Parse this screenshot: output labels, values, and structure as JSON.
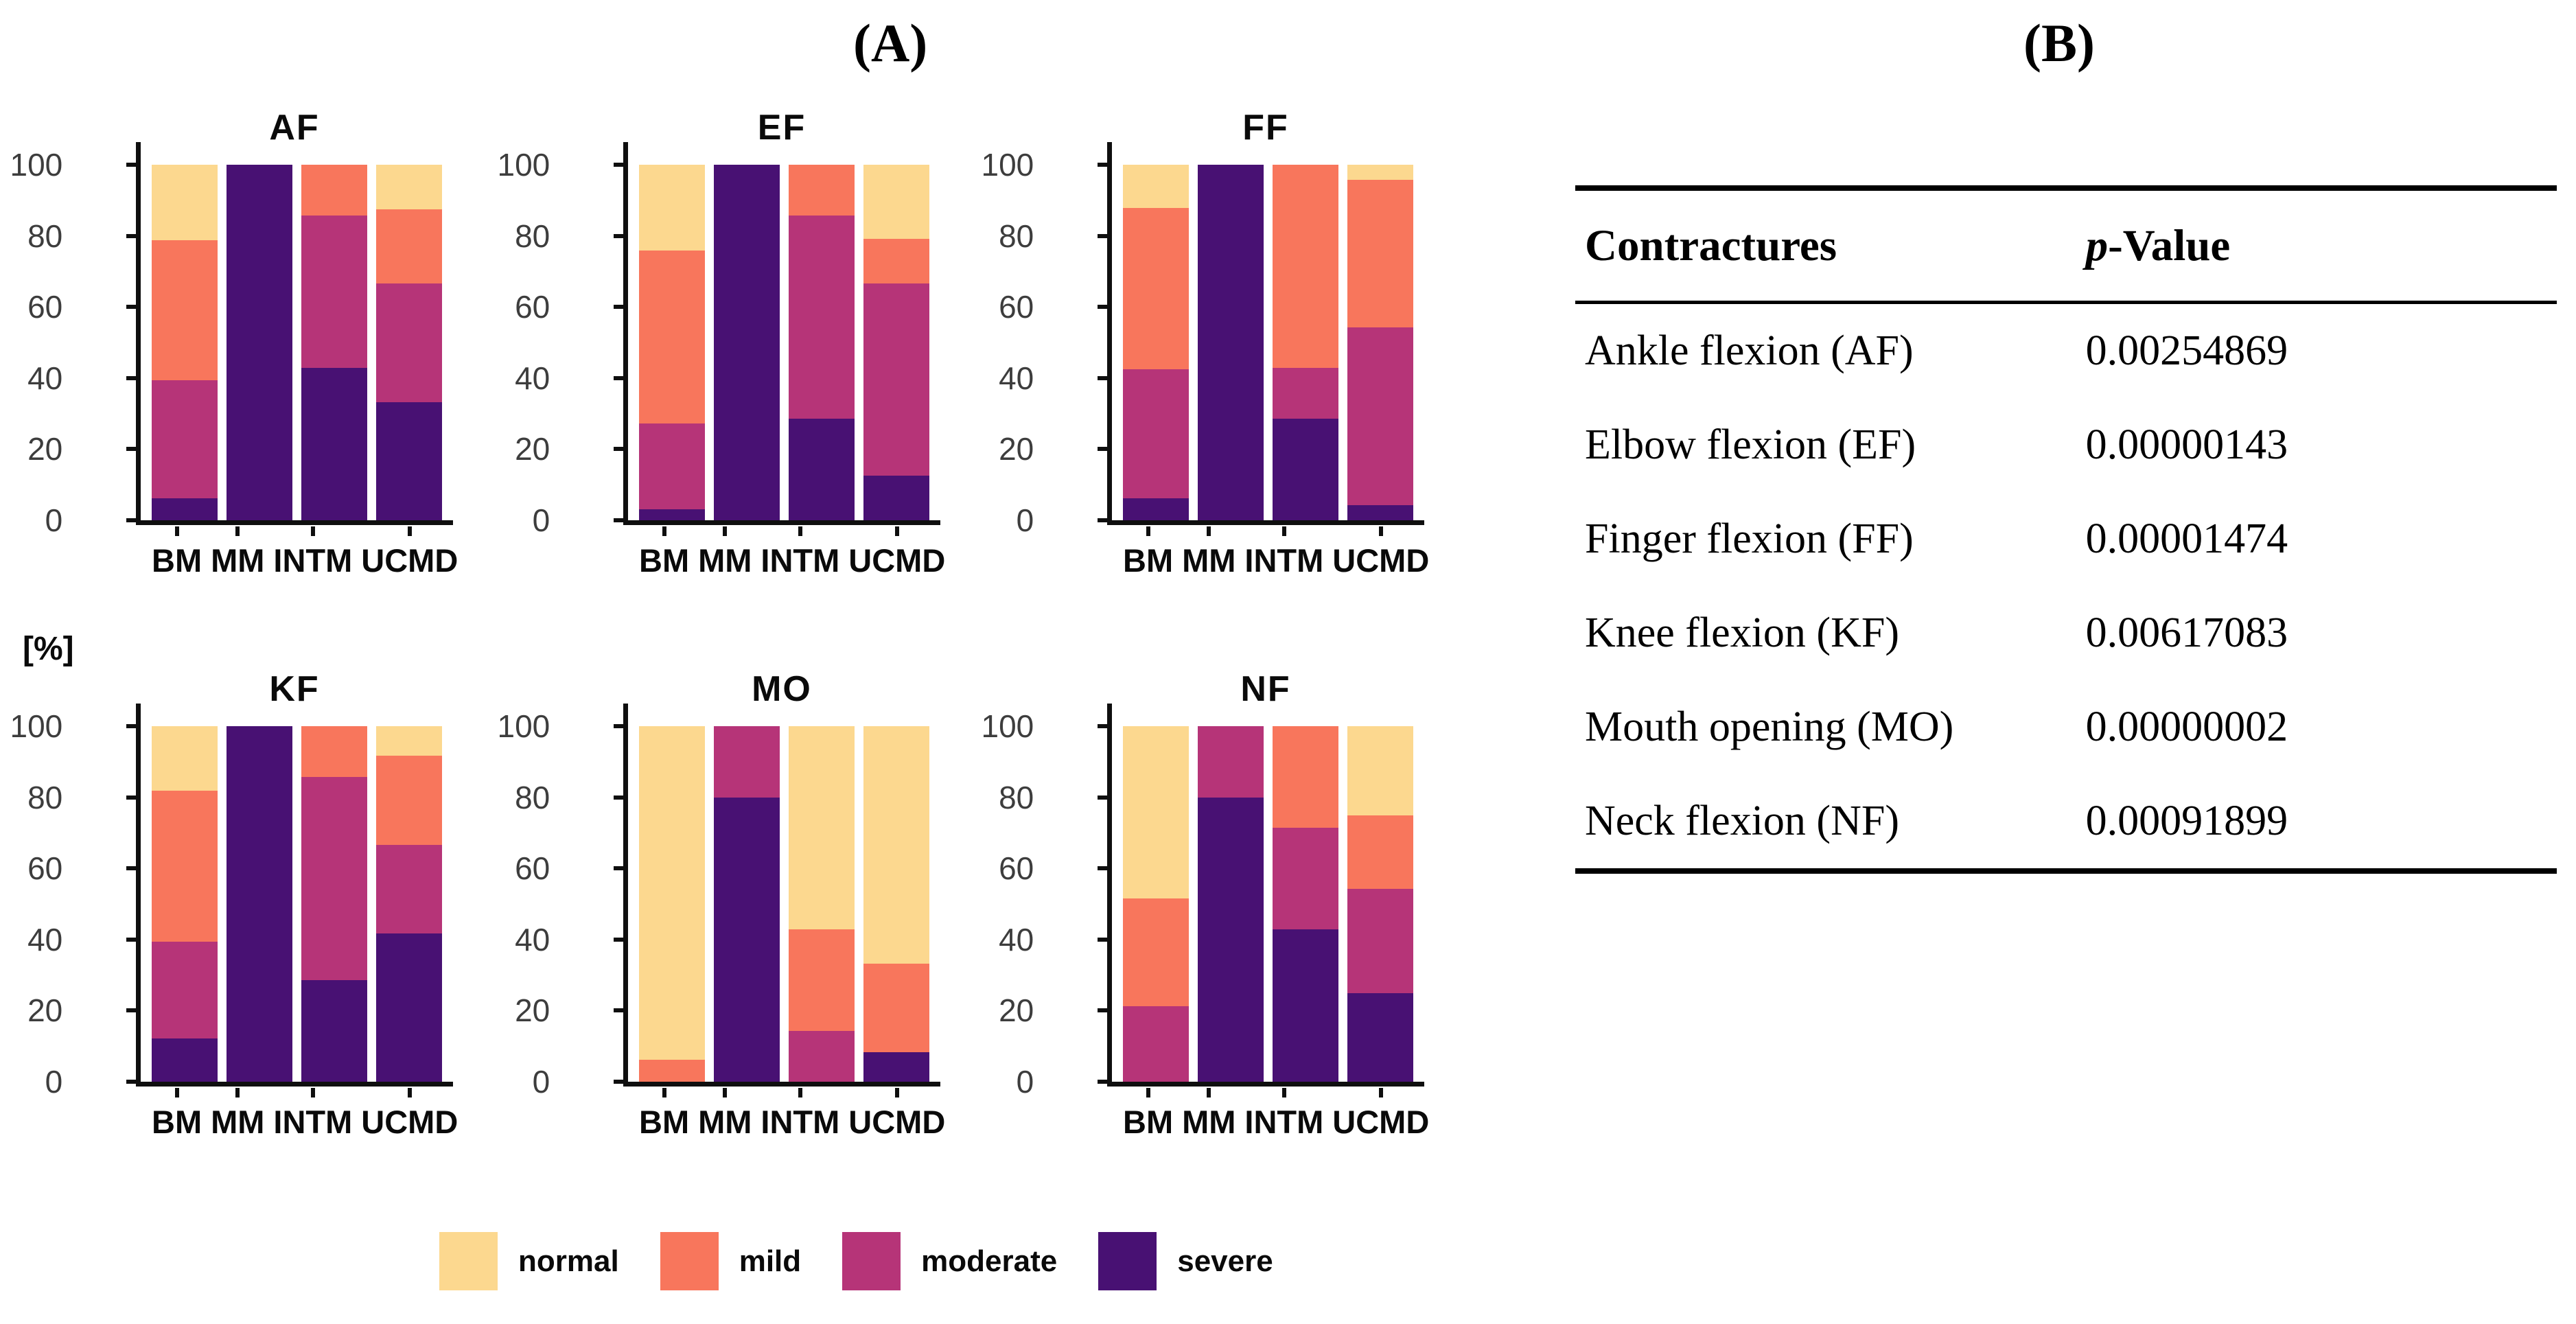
{
  "panel_a_label": "(A)",
  "panel_b_label": "(B)",
  "y_unit_label": "[%]",
  "legend": {
    "items": [
      {
        "label": "normal",
        "color": "#FCD88F"
      },
      {
        "label": "mild",
        "color": "#F8765C"
      },
      {
        "label": "moderate",
        "color": "#B63478"
      },
      {
        "label": "severe",
        "color": "#481173"
      }
    ]
  },
  "chart_data": {
    "type": "bar",
    "subtype": "stacked-percent",
    "categories": [
      "BM",
      "MM",
      "INTM",
      "UCMD"
    ],
    "stack_order_bottom_to_top": [
      "severe",
      "moderate",
      "mild",
      "normal"
    ],
    "colors": {
      "normal": "#FCD88F",
      "mild": "#F8765C",
      "moderate": "#B63478",
      "severe": "#481173"
    },
    "y_ticks": [
      0,
      20,
      40,
      60,
      80,
      100
    ],
    "ylim": [
      0,
      100
    ],
    "ylabel": "[%]",
    "grid": false,
    "legend_position": "bottom",
    "charts": [
      {
        "title": "AF",
        "series": [
          {
            "name": "severe",
            "values": [
              6.1,
              100,
              42.9,
              33.3
            ]
          },
          {
            "name": "moderate",
            "values": [
              33.3,
              0,
              42.8,
              33.4
            ]
          },
          {
            "name": "mild",
            "values": [
              39.4,
              0,
              14.3,
              20.8
            ]
          },
          {
            "name": "normal",
            "values": [
              21.2,
              0,
              0,
              12.5
            ]
          }
        ]
      },
      {
        "title": "EF",
        "series": [
          {
            "name": "severe",
            "values": [
              3.0,
              100,
              28.6,
              12.5
            ]
          },
          {
            "name": "moderate",
            "values": [
              24.3,
              0,
              57.1,
              54.2
            ]
          },
          {
            "name": "mild",
            "values": [
              48.5,
              0,
              14.3,
              12.5
            ]
          },
          {
            "name": "normal",
            "values": [
              24.2,
              0,
              0,
              20.8
            ]
          }
        ]
      },
      {
        "title": "FF",
        "series": [
          {
            "name": "severe",
            "values": [
              6.1,
              100,
              28.6,
              4.2
            ]
          },
          {
            "name": "moderate",
            "values": [
              36.3,
              0,
              14.3,
              50.0
            ]
          },
          {
            "name": "mild",
            "values": [
              45.5,
              0,
              57.1,
              41.6
            ]
          },
          {
            "name": "normal",
            "values": [
              12.1,
              0,
              0,
              4.2
            ]
          }
        ]
      },
      {
        "title": "KF",
        "series": [
          {
            "name": "severe",
            "values": [
              12.1,
              100,
              28.6,
              41.7
            ]
          },
          {
            "name": "moderate",
            "values": [
              27.3,
              0,
              57.1,
              25.0
            ]
          },
          {
            "name": "mild",
            "values": [
              42.4,
              0,
              14.3,
              25.0
            ]
          },
          {
            "name": "normal",
            "values": [
              18.2,
              0,
              0,
              8.3
            ]
          }
        ]
      },
      {
        "title": "MO",
        "series": [
          {
            "name": "severe",
            "values": [
              0,
              80,
              0,
              8.3
            ]
          },
          {
            "name": "moderate",
            "values": [
              0,
              20,
              14.3,
              0
            ]
          },
          {
            "name": "mild",
            "values": [
              6.1,
              0,
              28.6,
              25.0
            ]
          },
          {
            "name": "normal",
            "values": [
              93.9,
              0,
              57.1,
              66.7
            ]
          }
        ]
      },
      {
        "title": "NF",
        "series": [
          {
            "name": "severe",
            "values": [
              0,
              80,
              42.9,
              25.0
            ]
          },
          {
            "name": "moderate",
            "values": [
              21.2,
              20,
              28.6,
              29.2
            ]
          },
          {
            "name": "mild",
            "values": [
              30.3,
              0,
              28.5,
              20.8
            ]
          },
          {
            "name": "normal",
            "values": [
              48.5,
              0,
              0,
              25.0
            ]
          }
        ]
      }
    ]
  },
  "table": {
    "header": {
      "col1": "Contractures",
      "p_italic": "p",
      "p_rest": "-Value"
    },
    "rows": [
      {
        "label": "Ankle flexion (AF)",
        "value": "0.00254869"
      },
      {
        "label": "Elbow flexion (EF)",
        "value": "0.00000143"
      },
      {
        "label": "Finger flexion (FF)",
        "value": "0.00001474"
      },
      {
        "label": "Knee flexion (KF)",
        "value": "0.00617083"
      },
      {
        "label": "Mouth opening (MO)",
        "value": "0.00000002"
      },
      {
        "label": "Neck flexion (NF)",
        "value": "0.00091899"
      }
    ]
  }
}
